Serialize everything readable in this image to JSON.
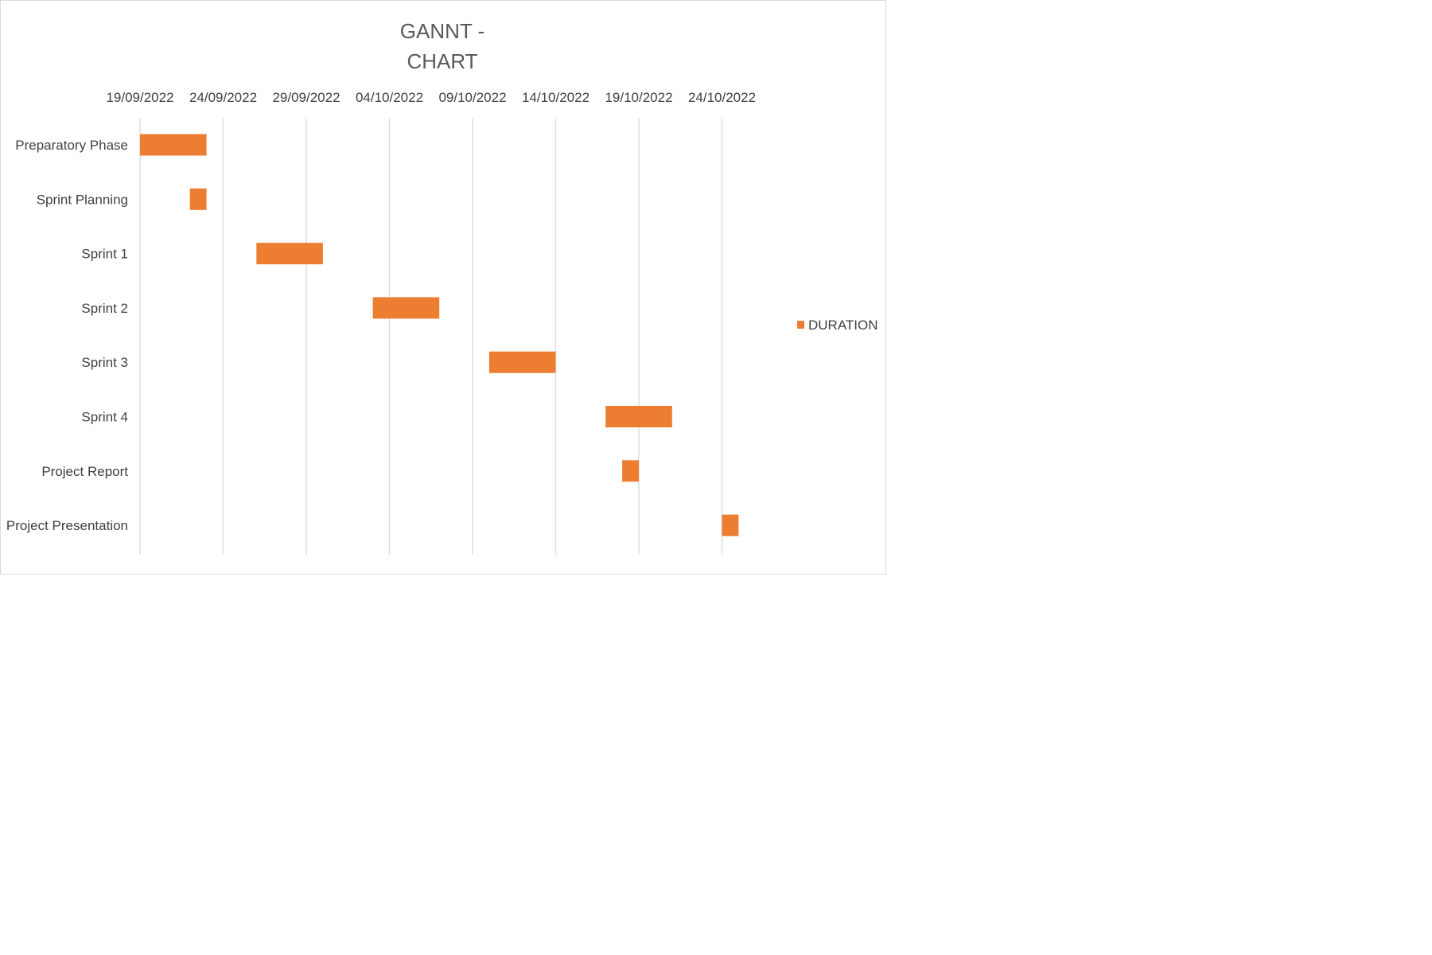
{
  "chart_data": {
    "type": "bar",
    "orientation": "horizontal",
    "subtype": "gantt",
    "title": [
      "GANNT -",
      "CHART"
    ],
    "x_axis": {
      "type": "date",
      "position": "top",
      "ticks": [
        "19/09/2022",
        "24/09/2022",
        "29/09/2022",
        "04/10/2022",
        "09/10/2022",
        "14/10/2022",
        "19/10/2022",
        "24/10/2022"
      ],
      "range": [
        "2022-09-19",
        "2022-10-24"
      ]
    },
    "grid": "vertical",
    "legend": {
      "placement": "right",
      "entries": [
        {
          "name": "DURATION",
          "color": "#ED7D31"
        }
      ]
    },
    "categories": [
      "Preparatory Phase",
      "Sprint Planning",
      "Sprint 1",
      "Sprint 2",
      "Sprint 3",
      "Sprint 4",
      "Project Report",
      "Project Presentation"
    ],
    "series": [
      {
        "name": "DURATION",
        "color": "#ED7D31",
        "tasks": [
          {
            "start": "2022-09-19",
            "duration": 4
          },
          {
            "start": "2022-09-22",
            "duration": 1
          },
          {
            "start": "2022-09-26",
            "duration": 4
          },
          {
            "start": "2022-10-03",
            "duration": 4
          },
          {
            "start": "2022-10-10",
            "duration": 4
          },
          {
            "start": "2022-10-17",
            "duration": 4
          },
          {
            "start": "2022-10-18",
            "duration": 1
          },
          {
            "start": "2022-10-24",
            "duration": 1
          }
        ]
      }
    ]
  }
}
